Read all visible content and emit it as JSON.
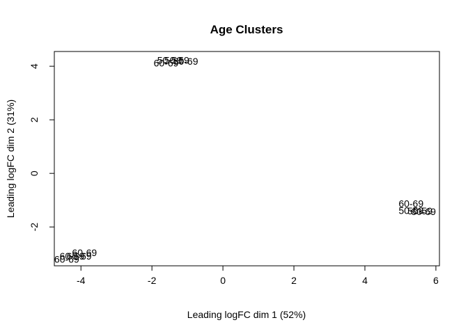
{
  "chart_data": {
    "type": "scatter",
    "title": "Age Clusters",
    "xlabel": "Leading logFC dim 1 (52%)",
    "ylabel": "Leading logFC dim 2 (31%)",
    "xlim": [
      -4.75,
      6.1
    ],
    "ylim": [
      -3.45,
      4.55
    ],
    "xticks": [
      -4,
      -2,
      0,
      2,
      4,
      6
    ],
    "yticks": [
      -2,
      0,
      2,
      4
    ],
    "marker": "text",
    "points": [
      {
        "x": -1.5,
        "y": 4.22,
        "label": "50-59"
      },
      {
        "x": -1.3,
        "y": 4.22,
        "label": "50-59"
      },
      {
        "x": -1.05,
        "y": 4.18,
        "label": "60-69"
      },
      {
        "x": -1.6,
        "y": 4.12,
        "label": "60-69"
      },
      {
        "x": 5.3,
        "y": -1.12,
        "label": "60-69"
      },
      {
        "x": 5.3,
        "y": -1.38,
        "label": "50-59"
      },
      {
        "x": 5.55,
        "y": -1.4,
        "label": "50-59"
      },
      {
        "x": 5.65,
        "y": -1.42,
        "label": "60-69"
      },
      {
        "x": -3.9,
        "y": -2.95,
        "label": "60-69"
      },
      {
        "x": -4.25,
        "y": -3.08,
        "label": "60-69"
      },
      {
        "x": -4.05,
        "y": -3.08,
        "label": "60-69"
      },
      {
        "x": -4.4,
        "y": -3.2,
        "label": "60-69"
      }
    ]
  }
}
